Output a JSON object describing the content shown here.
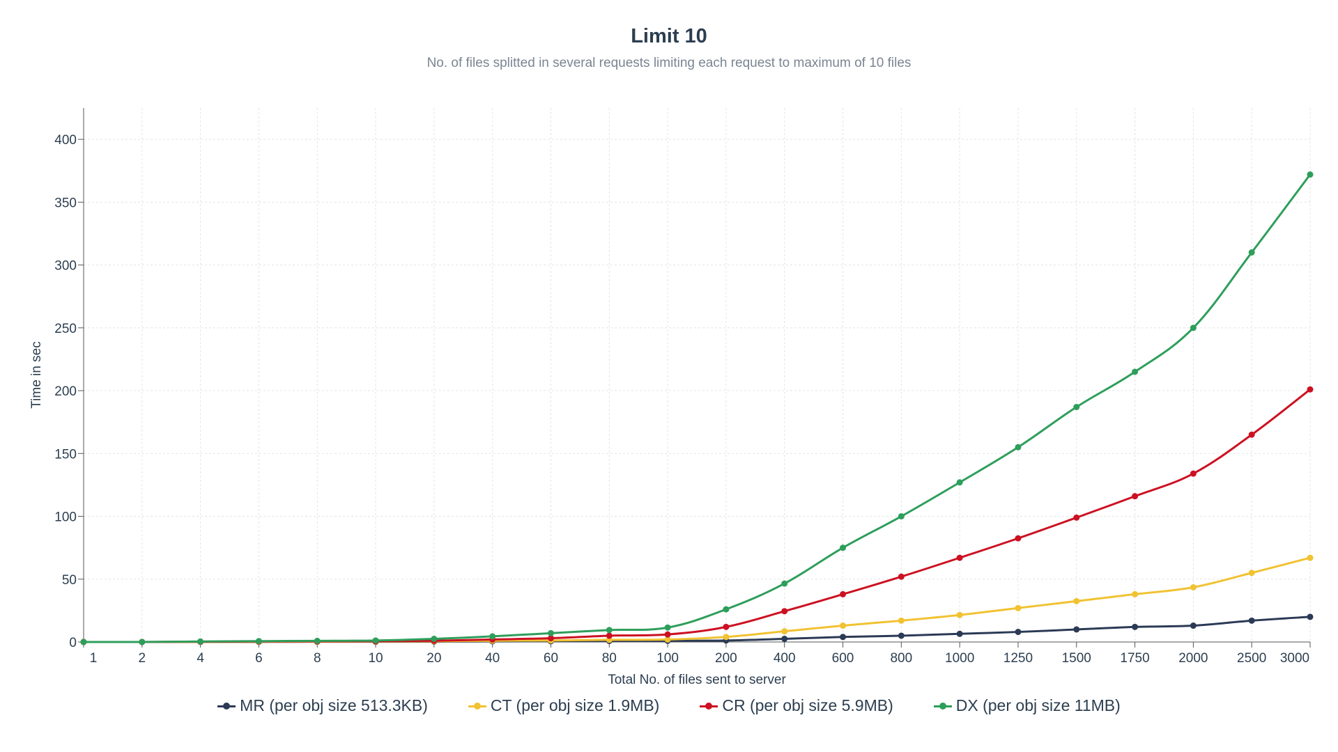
{
  "chart_data": {
    "type": "line",
    "title": "Limit 10",
    "subtitle": "No. of files splitted in several requests limiting each request to maximum of 10 files",
    "xlabel": "Total No. of files sent to server",
    "ylabel": "Time in sec",
    "ylim": [
      0,
      425
    ],
    "yticks": [
      0,
      50,
      100,
      150,
      200,
      250,
      300,
      350,
      400
    ],
    "grid": true,
    "legend_position": "bottom",
    "categories": [
      "1",
      "2",
      "4",
      "6",
      "8",
      "10",
      "20",
      "40",
      "60",
      "80",
      "100",
      "200",
      "400",
      "600",
      "800",
      "1000",
      "1250",
      "1500",
      "1750",
      "2000",
      "2500",
      "3000"
    ],
    "series": [
      {
        "name": "MR (per obj size 513.3KB)",
        "color": "#2b3a55",
        "values": [
          0,
          0,
          0.1,
          0.1,
          0.2,
          0.2,
          0.3,
          0.5,
          0.6,
          0.8,
          0.9,
          1.2,
          2.5,
          4,
          5,
          6.5,
          8,
          10,
          12,
          13,
          17,
          20
        ]
      },
      {
        "name": "CT (per obj size 1.9MB)",
        "color": "#f1c232",
        "values": [
          0,
          0,
          0.1,
          0.2,
          0.3,
          0.4,
          0.6,
          1,
          1.2,
          1.7,
          2,
          4,
          8.5,
          13,
          17,
          21.5,
          27,
          32.5,
          38,
          43.5,
          55,
          67
        ]
      },
      {
        "name": "CR (per obj size 5.9MB)",
        "color": "#cc1122",
        "values": [
          0,
          0,
          0.2,
          0.4,
          0.5,
          0.6,
          1,
          2,
          3,
          5,
          6,
          12,
          24.5,
          38,
          52,
          67,
          82.5,
          99,
          116,
          134,
          165,
          201
        ]
      },
      {
        "name": "DX (per obj size 11MB)",
        "color": "#2e9e5b",
        "values": [
          0,
          0,
          0.4,
          0.7,
          0.9,
          1.2,
          2.5,
          4.5,
          7,
          9.5,
          11.5,
          26,
          46.5,
          75,
          100,
          127,
          155,
          187,
          215,
          250,
          310,
          372
        ]
      }
    ]
  }
}
